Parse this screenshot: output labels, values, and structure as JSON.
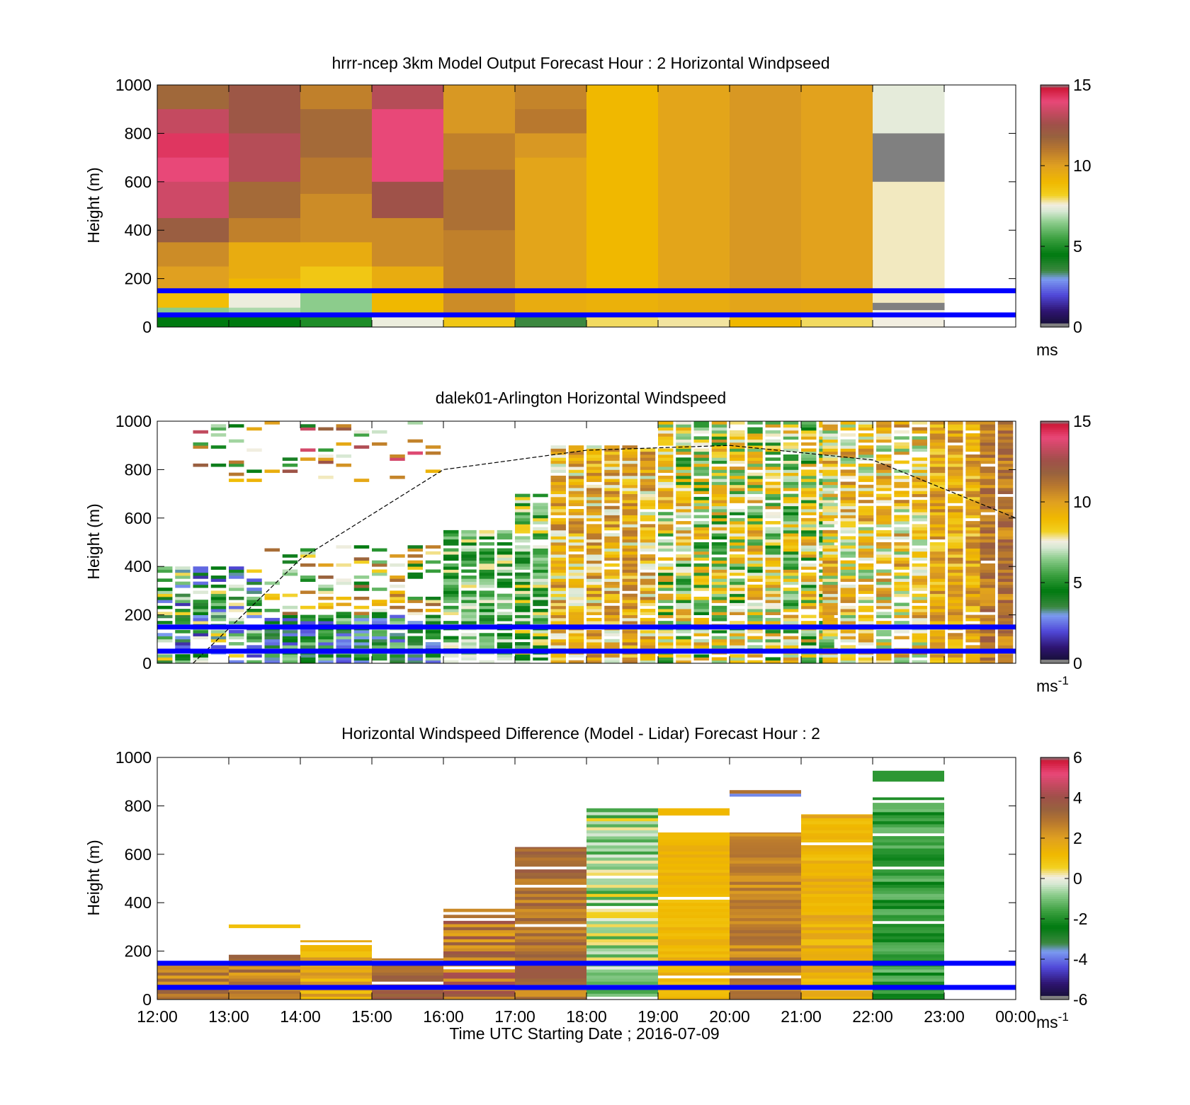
{
  "figure": {
    "xlabel": "Time UTC  Starting Date ; 2016-07-09",
    "xticks": [
      "12:00",
      "13:00",
      "14:00",
      "15:00",
      "16:00",
      "17:00",
      "18:00",
      "19:00",
      "20:00",
      "21:00",
      "22:00",
      "23:00",
      "00:00"
    ]
  },
  "chart_data": [
    {
      "type": "heatmap",
      "title": "hrrr-ncep 3km Model Output   Forecast Hour : 2 Horizontal Windpseed",
      "ylabel": "Height (m)",
      "ylim": [
        0,
        1000
      ],
      "yticks": [
        "0",
        "200",
        "400",
        "600",
        "800",
        "1000"
      ],
      "x_hours": [
        12,
        24
      ],
      "colorbar": {
        "unit": "ms",
        "unit_sup": "",
        "range": [
          0,
          15
        ],
        "ticks": [
          "0",
          "5",
          "10",
          "15"
        ]
      },
      "reference_lines_m": [
        150,
        50
      ],
      "columns": [
        {
          "start_hour": 12,
          "bins": [
            {
              "h": [
                1000,
                900
              ],
              "v": 11.6
            },
            {
              "h": [
                900,
                800
              ],
              "v": 13.3
            },
            {
              "h": [
                800,
                700
              ],
              "v": 14.3
            },
            {
              "h": [
                700,
                600
              ],
              "v": 14.0
            },
            {
              "h": [
                600,
                450
              ],
              "v": 13.5
            },
            {
              "h": [
                450,
                350
              ],
              "v": 12.0
            },
            {
              "h": [
                350,
                250
              ],
              "v": 10.5
            },
            {
              "h": [
                250,
                150
              ],
              "v": 10.0
            },
            {
              "h": [
                150,
                80
              ],
              "v": 8.8
            },
            {
              "h": [
                80,
                50
              ],
              "v": 6.5
            },
            {
              "h": [
                50,
                0
              ],
              "v": 4.5
            }
          ]
        },
        {
          "start_hour": 13,
          "bins": [
            {
              "h": [
                1000,
                800
              ],
              "v": 12.3
            },
            {
              "h": [
                800,
                600
              ],
              "v": 13.0
            },
            {
              "h": [
                600,
                450
              ],
              "v": 11.5
            },
            {
              "h": [
                450,
                350
              ],
              "v": 10.8
            },
            {
              "h": [
                350,
                200
              ],
              "v": 9.5
            },
            {
              "h": [
                200,
                150
              ],
              "v": 9.0
            },
            {
              "h": [
                150,
                80
              ],
              "v": 7.5
            },
            {
              "h": [
                80,
                50
              ],
              "v": 6.8
            },
            {
              "h": [
                50,
                0
              ],
              "v": 4.5
            }
          ]
        },
        {
          "start_hour": 14,
          "bins": [
            {
              "h": [
                1000,
                900
              ],
              "v": 10.8
            },
            {
              "h": [
                900,
                700
              ],
              "v": 11.5
            },
            {
              "h": [
                700,
                550
              ],
              "v": 11.0
            },
            {
              "h": [
                550,
                350
              ],
              "v": 10.5
            },
            {
              "h": [
                350,
                250
              ],
              "v": 9.5
            },
            {
              "h": [
                250,
                150
              ],
              "v": 8.5
            },
            {
              "h": [
                150,
                50
              ],
              "v": 6.5
            },
            {
              "h": [
                50,
                0
              ],
              "v": 5.0
            }
          ]
        },
        {
          "start_hour": 15,
          "bins": [
            {
              "h": [
                1000,
                900
              ],
              "v": 13.0
            },
            {
              "h": [
                900,
                600
              ],
              "v": 14.0
            },
            {
              "h": [
                600,
                450
              ],
              "v": 12.5
            },
            {
              "h": [
                450,
                250
              ],
              "v": 10.5
            },
            {
              "h": [
                250,
                150
              ],
              "v": 9.5
            },
            {
              "h": [
                150,
                50
              ],
              "v": 9.0
            },
            {
              "h": [
                50,
                0
              ],
              "v": 7.5
            }
          ]
        },
        {
          "start_hour": 16,
          "bins": [
            {
              "h": [
                1000,
                800
              ],
              "v": 10.2
            },
            {
              "h": [
                800,
                650
              ],
              "v": 10.8
            },
            {
              "h": [
                650,
                400
              ],
              "v": 11.3
            },
            {
              "h": [
                400,
                150
              ],
              "v": 10.8
            },
            {
              "h": [
                150,
                50
              ],
              "v": 10.5
            },
            {
              "h": [
                50,
                0
              ],
              "v": 8.5
            }
          ]
        },
        {
          "start_hour": 17,
          "bins": [
            {
              "h": [
                1000,
                900
              ],
              "v": 10.7
            },
            {
              "h": [
                900,
                800
              ],
              "v": 11.0
            },
            {
              "h": [
                800,
                700
              ],
              "v": 10.2
            },
            {
              "h": [
                700,
                150
              ],
              "v": 9.8
            },
            {
              "h": [
                150,
                50
              ],
              "v": 9.5
            },
            {
              "h": [
                50,
                0
              ],
              "v": 3.5
            }
          ]
        },
        {
          "start_hour": 18,
          "bins": [
            {
              "h": [
                1000,
                150
              ],
              "v": 9.0
            },
            {
              "h": [
                150,
                50
              ],
              "v": 9.3
            },
            {
              "h": [
                50,
                0
              ],
              "v": 8.0
            }
          ]
        },
        {
          "start_hour": 19,
          "bins": [
            {
              "h": [
                1000,
                150
              ],
              "v": 9.8
            },
            {
              "h": [
                150,
                50
              ],
              "v": 9.5
            },
            {
              "h": [
                50,
                0
              ],
              "v": 7.8
            }
          ]
        },
        {
          "start_hour": 20,
          "bins": [
            {
              "h": [
                1000,
                150
              ],
              "v": 10.2
            },
            {
              "h": [
                150,
                50
              ],
              "v": 9.8
            },
            {
              "h": [
                50,
                0
              ],
              "v": 9.0
            }
          ]
        },
        {
          "start_hour": 21,
          "bins": [
            {
              "h": [
                1000,
                150
              ],
              "v": 9.9
            },
            {
              "h": [
                150,
                50
              ],
              "v": 9.7
            },
            {
              "h": [
                50,
                0
              ],
              "v": 8.0
            }
          ]
        },
        {
          "start_hour": 22,
          "bins": [
            {
              "h": [
                1000,
                800
              ],
              "v": 7.4
            },
            {
              "h": [
                800,
                600
              ],
              "v": 0.0
            },
            {
              "h": [
                600,
                100
              ],
              "v": 7.7
            },
            {
              "h": [
                100,
                70
              ],
              "v": 0.0
            },
            {
              "h": [
                70,
                0
              ],
              "v": 7.6
            }
          ]
        }
      ]
    },
    {
      "type": "heatmap",
      "title": "dalek01-Arlington  Horizontal Windspeed",
      "ylabel": "Height (m)",
      "ylim": [
        0,
        1000
      ],
      "yticks": [
        "0",
        "200",
        "400",
        "600",
        "800",
        "1000"
      ],
      "x_hours": [
        12,
        24
      ],
      "colorbar": {
        "unit": "ms",
        "unit_sup": "-1",
        "range": [
          0,
          15
        ],
        "ticks": [
          "0",
          "5",
          "10",
          "15"
        ]
      },
      "reference_lines_m": [
        150,
        50
      ],
      "boundary_layer_curve": {
        "hours": [
          12.5,
          14,
          16,
          18,
          20,
          22,
          24
        ],
        "heights_m": [
          0,
          430,
          800,
          880,
          900,
          840,
          600
        ]
      },
      "regimes": [
        {
          "hours": [
            12.0,
            13.5
          ],
          "range_m": [
            0,
            400
          ],
          "mean": 5.0,
          "spread": 3.5,
          "fill": 0.7
        },
        {
          "hours": [
            12.5,
            16.0
          ],
          "range_m": [
            750,
            1000
          ],
          "mean": 9.0,
          "spread": 5.0,
          "fill": 0.2
        },
        {
          "hours": [
            13.5,
            16.0
          ],
          "range_m": [
            0,
            200
          ],
          "mean": 4.5,
          "spread": 2.5,
          "fill": 0.95
        },
        {
          "hours": [
            13.5,
            16.0
          ],
          "range_m": [
            200,
            480
          ],
          "mean": 8.0,
          "spread": 4.0,
          "fill": 0.35
        },
        {
          "hours": [
            16.0,
            17.0
          ],
          "range_m": [
            0,
            550
          ],
          "mean": 6.0,
          "spread": 2.0,
          "fill": 0.85
        },
        {
          "hours": [
            17.0,
            17.5
          ],
          "range_m": [
            0,
            700
          ],
          "mean": 6.3,
          "spread": 2.2,
          "fill": 0.9
        },
        {
          "hours": [
            17.5,
            19.0
          ],
          "range_m": [
            0,
            900
          ],
          "mean": 9.0,
          "spread": 2.2,
          "fill": 0.95
        },
        {
          "hours": [
            19.0,
            21.3
          ],
          "range_m": [
            0,
            1000
          ],
          "mean": 7.5,
          "spread": 3.0,
          "fill": 0.9
        },
        {
          "hours": [
            21.3,
            22.8
          ],
          "range_m": [
            0,
            1000
          ],
          "mean": 8.5,
          "spread": 2.5,
          "fill": 0.85
        },
        {
          "hours": [
            22.8,
            23.5
          ],
          "range_m": [
            0,
            1000
          ],
          "mean": 9.5,
          "spread": 1.5,
          "fill": 0.95
        },
        {
          "hours": [
            23.5,
            23.8
          ],
          "range_m": [
            0,
            1000
          ],
          "mean": 11.0,
          "spread": 1.2,
          "fill": 0.95
        }
      ]
    },
    {
      "type": "heatmap",
      "title": "Horizontal Windspeed Difference (Model - Lidar) Forecast Hour : 2",
      "ylabel": "Height (m)",
      "ylim": [
        0,
        1000
      ],
      "yticks": [
        "0",
        "200",
        "400",
        "600",
        "800",
        "1000"
      ],
      "x_hours": [
        12,
        24
      ],
      "colorbar": {
        "unit": "ms",
        "unit_sup": "-1",
        "range": [
          -6,
          6
        ],
        "ticks": [
          "-6",
          "-4",
          "-2",
          "0",
          "2",
          "4",
          "6"
        ]
      },
      "reference_lines_m": [
        150,
        50
      ],
      "columns": [
        {
          "start_hour": 12,
          "range_m": [
            0,
            150
          ],
          "mean": 2.5,
          "spread": 1.0
        },
        {
          "start_hour": 13,
          "range_m": [
            0,
            185
          ],
          "mean": 2.6,
          "spread": 1.0,
          "extra": [
            {
              "h": [
                295,
                310
              ],
              "v": 1.0
            }
          ]
        },
        {
          "start_hour": 14,
          "range_m": [
            0,
            245
          ],
          "mean": 1.6,
          "spread": 0.7
        },
        {
          "start_hour": 15,
          "range_m": [
            0,
            170
          ],
          "mean": 3.2,
          "spread": 0.8
        },
        {
          "start_hour": 16,
          "range_m": [
            0,
            375
          ],
          "mean": 3.0,
          "spread": 1.3
        },
        {
          "start_hour": 17,
          "range_m": [
            0,
            630
          ],
          "mean": 3.0,
          "spread": 0.8
        },
        {
          "start_hour": 18,
          "range_m": [
            0,
            790
          ],
          "mean": -0.5,
          "spread": 1.3
        },
        {
          "start_hour": 19,
          "range_m": [
            0,
            690
          ],
          "mean": 1.3,
          "spread": 0.4,
          "extra": [
            {
              "h": [
                760,
                790
              ],
              "v": 1.2
            }
          ]
        },
        {
          "start_hour": 20,
          "range_m": [
            0,
            690
          ],
          "mean": 2.5,
          "spread": 0.7,
          "extra": [
            {
              "h": [
                850,
                865
              ],
              "v": 3.0
            },
            {
              "h": [
                838,
                850
              ],
              "v": -3.8
            }
          ]
        },
        {
          "start_hour": 21,
          "range_m": [
            0,
            765
          ],
          "mean": 1.5,
          "spread": 0.6
        },
        {
          "start_hour": 22,
          "range_m": [
            0,
            835
          ],
          "mean": -1.7,
          "spread": 0.7,
          "extra": [
            {
              "h": [
                900,
                945
              ],
              "v": -1.8
            }
          ]
        }
      ]
    }
  ]
}
